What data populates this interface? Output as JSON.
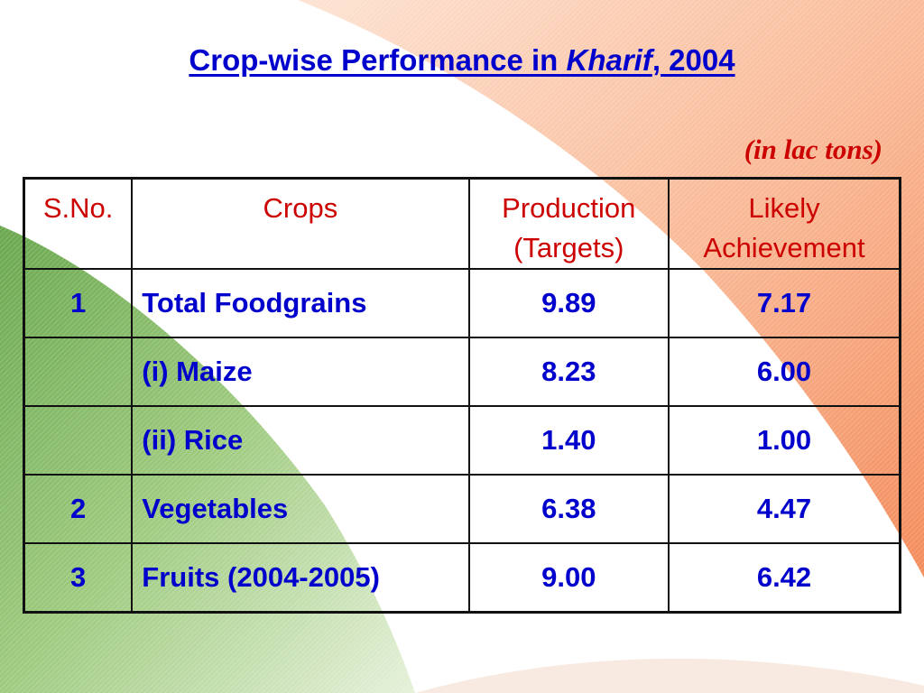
{
  "slide": {
    "title_part1": "Crop-wise Performance in ",
    "title_italic": "Kharif",
    "title_part2": ", 2004",
    "unit_note": "(in lac tons)"
  },
  "table": {
    "headers": {
      "sno": "S.No.",
      "crops": "Crops",
      "production_line1": "Production",
      "production_line2": "(Targets)",
      "achievement_line1": "Likely",
      "achievement_line2": "Achievement"
    },
    "rows": [
      {
        "sno": "1",
        "crop": "Total Foodgrains",
        "target": "9.89",
        "achievement": "7.17",
        "indent": false
      },
      {
        "sno": "",
        "crop": "(i) Maize",
        "target": "8.23",
        "achievement": "6.00",
        "indent": true
      },
      {
        "sno": "",
        "crop": "(ii) Rice",
        "target": "1.40",
        "achievement": "1.00",
        "indent": true
      },
      {
        "sno": "2",
        "crop": "Vegetables",
        "target": "6.38",
        "achievement": "4.47",
        "indent": false
      },
      {
        "sno": "3",
        "crop": "Fruits (2004-2005)",
        "target": "9.00",
        "achievement": "6.42",
        "indent": false
      }
    ]
  },
  "colors": {
    "title": "#0000cc",
    "header_text": "#cc0000",
    "cell_text": "#0000cc",
    "saffron_band": "#f7a882",
    "green_band": "#7fb85a"
  }
}
